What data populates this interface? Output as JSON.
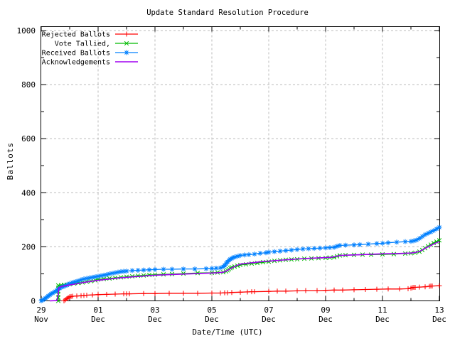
{
  "chart_data": {
    "type": "line",
    "title": "Update Standard Resolution Procedure",
    "xlabel": "Date/Time (UTC)",
    "ylabel": "Ballots",
    "ylim": [
      0,
      1000
    ],
    "grid": true,
    "legend_position": "top-left",
    "x_unit": "days since 29 Nov 00:00 UTC",
    "x_range_days": 14,
    "y_ticks_major": [
      0,
      200,
      400,
      600,
      800,
      1000
    ],
    "y_ticks_minor": [
      100,
      300,
      500,
      700,
      900
    ],
    "x_ticks_major": [
      {
        "day": 0,
        "label": "29",
        "sub": "Nov"
      },
      {
        "day": 2,
        "label": "01",
        "sub": "Dec"
      },
      {
        "day": 4,
        "label": "03",
        "sub": "Dec"
      },
      {
        "day": 6,
        "label": "05",
        "sub": "Dec"
      },
      {
        "day": 8,
        "label": "07",
        "sub": "Dec"
      },
      {
        "day": 10,
        "label": "09",
        "sub": "Dec"
      },
      {
        "day": 12,
        "label": "11",
        "sub": "Dec"
      },
      {
        "day": 14,
        "label": "13",
        "sub": "Dec"
      }
    ],
    "x_ticks_minor_days": [
      1,
      3,
      5,
      7,
      9,
      11,
      13
    ],
    "colors": {
      "grid": "#bbbbbb",
      "axis": "#000000",
      "background": "#ffffff"
    },
    "series": [
      {
        "name": "Rejected Ballots",
        "color": "#ff0000",
        "marker": "plus",
        "points": [
          [
            0.8,
            0
          ],
          [
            0.85,
            4
          ],
          [
            0.9,
            8
          ],
          [
            0.95,
            12
          ],
          [
            1,
            15
          ],
          [
            1.05,
            16
          ],
          [
            1.1,
            17
          ],
          [
            1.25,
            18
          ],
          [
            1.4,
            19
          ],
          [
            1.5,
            20
          ],
          [
            1.6,
            21
          ],
          [
            1.8,
            22
          ],
          [
            2,
            23
          ],
          [
            2.3,
            24
          ],
          [
            2.6,
            25
          ],
          [
            2.9,
            26
          ],
          [
            3,
            26
          ],
          [
            3.1,
            26
          ],
          [
            3.6,
            27
          ],
          [
            4,
            27
          ],
          [
            4.5,
            28
          ],
          [
            5,
            28
          ],
          [
            5.5,
            28
          ],
          [
            6,
            29
          ],
          [
            6.3,
            29
          ],
          [
            6.45,
            30
          ],
          [
            6.55,
            30
          ],
          [
            6.7,
            31
          ],
          [
            7,
            32
          ],
          [
            7.25,
            33
          ],
          [
            7.4,
            34
          ],
          [
            7.5,
            34
          ],
          [
            8,
            35
          ],
          [
            8.3,
            36
          ],
          [
            8.6,
            36
          ],
          [
            9,
            37
          ],
          [
            9.3,
            38
          ],
          [
            9.7,
            38
          ],
          [
            10,
            39
          ],
          [
            10.3,
            40
          ],
          [
            10.6,
            40
          ],
          [
            11,
            41
          ],
          [
            11.4,
            42
          ],
          [
            11.8,
            43
          ],
          [
            12.2,
            44
          ],
          [
            12.6,
            44
          ],
          [
            12.9,
            45
          ],
          [
            13,
            47
          ],
          [
            13.05,
            49
          ],
          [
            13.1,
            50
          ],
          [
            13.15,
            50
          ],
          [
            13.3,
            51
          ],
          [
            13.5,
            52
          ],
          [
            13.65,
            54
          ],
          [
            13.7,
            55
          ],
          [
            13.75,
            55
          ],
          [
            14,
            56
          ]
        ]
      },
      {
        "name": "Vote Tallied,",
        "color": "#00bb00",
        "marker": "cross",
        "points": [
          [
            0.6,
            0
          ],
          [
            0.6,
            12
          ],
          [
            0.6,
            24
          ],
          [
            0.6,
            36
          ],
          [
            0.6,
            48
          ],
          [
            0.6,
            57
          ],
          [
            0.7,
            58
          ],
          [
            0.8,
            59
          ],
          [
            0.9,
            60
          ],
          [
            1,
            62
          ],
          [
            1.15,
            64
          ],
          [
            1.3,
            66
          ],
          [
            1.45,
            68
          ],
          [
            1.6,
            71
          ],
          [
            1.75,
            73
          ],
          [
            1.9,
            76
          ],
          [
            2,
            79
          ],
          [
            2.2,
            81
          ],
          [
            2.4,
            83
          ],
          [
            2.6,
            85
          ],
          [
            2.8,
            87
          ],
          [
            3,
            89
          ],
          [
            3.2,
            91
          ],
          [
            3.4,
            93
          ],
          [
            3.6,
            94
          ],
          [
            3.8,
            96
          ],
          [
            4,
            97
          ],
          [
            4.3,
            98
          ],
          [
            4.6,
            99
          ],
          [
            5,
            101
          ],
          [
            5.5,
            103
          ],
          [
            6,
            104
          ],
          [
            6.2,
            105
          ],
          [
            6.4,
            106
          ],
          [
            6.5,
            109
          ],
          [
            6.55,
            113
          ],
          [
            6.6,
            117
          ],
          [
            6.65,
            121
          ],
          [
            6.7,
            124
          ],
          [
            6.8,
            127
          ],
          [
            6.9,
            130
          ],
          [
            7,
            133
          ],
          [
            7.2,
            135
          ],
          [
            7.4,
            138
          ],
          [
            7.6,
            140
          ],
          [
            7.8,
            143
          ],
          [
            8,
            145
          ],
          [
            8.2,
            148
          ],
          [
            8.4,
            150
          ],
          [
            8.6,
            152
          ],
          [
            8.8,
            153
          ],
          [
            9,
            154
          ],
          [
            9.25,
            156
          ],
          [
            9.5,
            157
          ],
          [
            9.75,
            158
          ],
          [
            10,
            159
          ],
          [
            10.15,
            160
          ],
          [
            10.3,
            161
          ],
          [
            10.4,
            165
          ],
          [
            10.5,
            168
          ],
          [
            10.7,
            169
          ],
          [
            11,
            170
          ],
          [
            11.3,
            171
          ],
          [
            11.6,
            171
          ],
          [
            12,
            172
          ],
          [
            12.4,
            173
          ],
          [
            12.8,
            175
          ],
          [
            13,
            176
          ],
          [
            13.15,
            178
          ],
          [
            13.3,
            182
          ],
          [
            13.4,
            188
          ],
          [
            13.5,
            195
          ],
          [
            13.6,
            202
          ],
          [
            13.7,
            208
          ],
          [
            13.8,
            214
          ],
          [
            13.9,
            219
          ],
          [
            14,
            224
          ]
        ]
      },
      {
        "name": "Received Ballots",
        "color": "#0080ff",
        "marker": "star",
        "points": [
          [
            0,
            0
          ],
          [
            0.05,
            3
          ],
          [
            0.1,
            6
          ],
          [
            0.15,
            10
          ],
          [
            0.2,
            14
          ],
          [
            0.25,
            18
          ],
          [
            0.3,
            22
          ],
          [
            0.35,
            26
          ],
          [
            0.4,
            29
          ],
          [
            0.45,
            32
          ],
          [
            0.5,
            35
          ],
          [
            0.55,
            39
          ],
          [
            0.6,
            43
          ],
          [
            0.65,
            47
          ],
          [
            0.7,
            50
          ],
          [
            0.75,
            52
          ],
          [
            0.8,
            54
          ],
          [
            0.85,
            56
          ],
          [
            0.9,
            58
          ],
          [
            0.95,
            61
          ],
          [
            1,
            64
          ],
          [
            1.1,
            68
          ],
          [
            1.2,
            71
          ],
          [
            1.3,
            74
          ],
          [
            1.4,
            78
          ],
          [
            1.5,
            81
          ],
          [
            1.6,
            83
          ],
          [
            1.7,
            85
          ],
          [
            1.8,
            87
          ],
          [
            1.9,
            89
          ],
          [
            2,
            91
          ],
          [
            2.1,
            93
          ],
          [
            2.2,
            95
          ],
          [
            2.3,
            97
          ],
          [
            2.4,
            100
          ],
          [
            2.5,
            102
          ],
          [
            2.6,
            104
          ],
          [
            2.7,
            106
          ],
          [
            2.8,
            108
          ],
          [
            2.9,
            109
          ],
          [
            3,
            110
          ],
          [
            3.2,
            112
          ],
          [
            3.4,
            113
          ],
          [
            3.6,
            114
          ],
          [
            3.8,
            115
          ],
          [
            4,
            116
          ],
          [
            4.3,
            117
          ],
          [
            4.6,
            117
          ],
          [
            5,
            118
          ],
          [
            5.4,
            118
          ],
          [
            5.8,
            119
          ],
          [
            6,
            120
          ],
          [
            6.15,
            121
          ],
          [
            6.3,
            122
          ],
          [
            6.4,
            126
          ],
          [
            6.45,
            131
          ],
          [
            6.5,
            138
          ],
          [
            6.55,
            144
          ],
          [
            6.6,
            150
          ],
          [
            6.65,
            154
          ],
          [
            6.7,
            157
          ],
          [
            6.75,
            160
          ],
          [
            6.8,
            162
          ],
          [
            6.9,
            165
          ],
          [
            7,
            168
          ],
          [
            7.15,
            170
          ],
          [
            7.3,
            171
          ],
          [
            7.5,
            173
          ],
          [
            7.7,
            176
          ],
          [
            7.9,
            178
          ],
          [
            8,
            180
          ],
          [
            8.2,
            182
          ],
          [
            8.4,
            184
          ],
          [
            8.6,
            186
          ],
          [
            8.8,
            188
          ],
          [
            9,
            190
          ],
          [
            9.2,
            192
          ],
          [
            9.4,
            193
          ],
          [
            9.6,
            194
          ],
          [
            9.8,
            195
          ],
          [
            10,
            196
          ],
          [
            10.15,
            197
          ],
          [
            10.3,
            198
          ],
          [
            10.4,
            202
          ],
          [
            10.5,
            205
          ],
          [
            10.7,
            206
          ],
          [
            11,
            207
          ],
          [
            11.2,
            208
          ],
          [
            11.5,
            210
          ],
          [
            11.8,
            212
          ],
          [
            12,
            213
          ],
          [
            12.2,
            215
          ],
          [
            12.5,
            217
          ],
          [
            12.8,
            219
          ],
          [
            13,
            220
          ],
          [
            13.1,
            222
          ],
          [
            13.2,
            225
          ],
          [
            13.3,
            231
          ],
          [
            13.4,
            238
          ],
          [
            13.5,
            245
          ],
          [
            13.6,
            250
          ],
          [
            13.7,
            255
          ],
          [
            13.8,
            260
          ],
          [
            13.9,
            266
          ],
          [
            14,
            272
          ]
        ]
      },
      {
        "name": "Acknowledgements",
        "color": "#a000f0",
        "marker": "none",
        "points": [
          [
            0.3,
            0
          ],
          [
            0.55,
            1
          ],
          [
            0.6,
            25
          ],
          [
            0.62,
            48
          ],
          [
            0.7,
            53
          ],
          [
            0.85,
            56
          ],
          [
            1,
            59
          ],
          [
            1.25,
            63
          ],
          [
            1.5,
            68
          ],
          [
            1.75,
            72
          ],
          [
            2,
            76
          ],
          [
            2.25,
            79
          ],
          [
            2.5,
            82
          ],
          [
            2.75,
            85
          ],
          [
            3,
            87
          ],
          [
            3.25,
            89
          ],
          [
            3.5,
            91
          ],
          [
            3.75,
            93
          ],
          [
            4,
            95
          ],
          [
            4.5,
            97
          ],
          [
            5,
            99
          ],
          [
            5.5,
            101
          ],
          [
            6,
            103
          ],
          [
            6.2,
            104
          ],
          [
            6.4,
            106
          ],
          [
            6.5,
            110
          ],
          [
            6.6,
            116
          ],
          [
            6.7,
            122
          ],
          [
            6.8,
            127
          ],
          [
            6.9,
            132
          ],
          [
            7,
            136
          ],
          [
            7.25,
            139
          ],
          [
            7.5,
            142
          ],
          [
            7.75,
            145
          ],
          [
            8,
            147
          ],
          [
            8.25,
            149
          ],
          [
            8.5,
            151
          ],
          [
            8.75,
            153
          ],
          [
            9,
            155
          ],
          [
            9.5,
            158
          ],
          [
            10,
            160
          ],
          [
            10.2,
            161
          ],
          [
            10.4,
            165
          ],
          [
            10.5,
            168
          ],
          [
            10.75,
            169
          ],
          [
            11,
            170
          ],
          [
            11.5,
            172
          ],
          [
            12,
            174
          ],
          [
            12.5,
            175
          ],
          [
            13,
            177
          ],
          [
            13.15,
            179
          ],
          [
            13.3,
            183
          ],
          [
            13.45,
            191
          ],
          [
            13.6,
            200
          ],
          [
            13.75,
            208
          ],
          [
            13.9,
            215
          ],
          [
            14,
            220
          ]
        ]
      }
    ]
  }
}
